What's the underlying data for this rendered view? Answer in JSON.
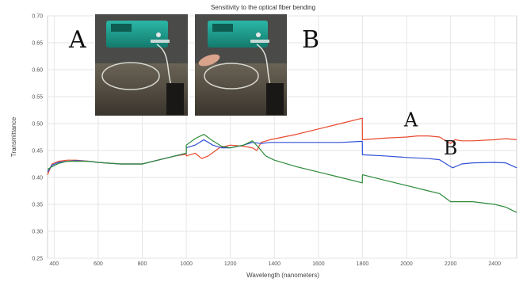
{
  "chart_data": {
    "type": "line",
    "title": "Sensitivity to the optical fiber bending",
    "xlabel": "Wavelength (nanometers)",
    "ylabel": "Transmittance",
    "xlim": [
      370,
      2500
    ],
    "ylim": [
      0.25,
      0.7
    ],
    "xticks": [
      400,
      600,
      800,
      1000,
      1200,
      1400,
      1600,
      1800,
      2000,
      2200,
      2400
    ],
    "yticks": [
      "0.25",
      "0.30",
      "0.35",
      "0.40",
      "0.45",
      "0.50",
      "0.55",
      "0.60",
      "0.65",
      "0.70"
    ],
    "grid": true,
    "photo_labels": [
      "A",
      "B"
    ],
    "curve_labels": [
      {
        "text": "A",
        "x": 2020,
        "y": 0.495
      },
      {
        "text": "B",
        "x": 2200,
        "y": 0.443
      }
    ],
    "series": [
      {
        "color": "#e8482c",
        "x": [
          370,
          390,
          420,
          460,
          500,
          560,
          600,
          700,
          800,
          850,
          900,
          950,
          1000,
          1000,
          1040,
          1070,
          1100,
          1150,
          1200,
          1260,
          1300,
          1320,
          1340,
          1380,
          1500,
          1600,
          1700,
          1799,
          1800,
          1900,
          2000,
          2050,
          2100,
          2150,
          2200,
          2220,
          2250,
          2300,
          2400,
          2450,
          2500
        ],
        "y": [
          0.405,
          0.425,
          0.43,
          0.432,
          0.432,
          0.43,
          0.428,
          0.425,
          0.425,
          0.43,
          0.435,
          0.44,
          0.443,
          0.44,
          0.445,
          0.435,
          0.44,
          0.455,
          0.46,
          0.458,
          0.455,
          0.45,
          0.465,
          0.47,
          0.48,
          0.49,
          0.5,
          0.51,
          0.47,
          0.473,
          0.475,
          0.477,
          0.477,
          0.475,
          0.463,
          0.47,
          0.468,
          0.468,
          0.47,
          0.472,
          0.47
        ]
      },
      {
        "color": "#2f4fd6",
        "x": [
          370,
          390,
          420,
          460,
          500,
          560,
          600,
          700,
          800,
          850,
          900,
          950,
          1000,
          1000,
          1040,
          1080,
          1120,
          1160,
          1200,
          1260,
          1300,
          1340,
          1380,
          1500,
          1600,
          1700,
          1799,
          1800,
          1900,
          2000,
          2100,
          2150,
          2200,
          2210,
          2250,
          2300,
          2400,
          2450,
          2500
        ],
        "y": [
          0.41,
          0.423,
          0.428,
          0.43,
          0.431,
          0.43,
          0.428,
          0.425,
          0.425,
          0.43,
          0.435,
          0.44,
          0.445,
          0.455,
          0.46,
          0.47,
          0.46,
          0.455,
          0.455,
          0.46,
          0.465,
          0.463,
          0.465,
          0.465,
          0.465,
          0.465,
          0.467,
          0.442,
          0.44,
          0.437,
          0.435,
          0.433,
          0.42,
          0.418,
          0.425,
          0.427,
          0.428,
          0.427,
          0.418
        ]
      },
      {
        "color": "#2e8b3a",
        "x": [
          370,
          390,
          420,
          460,
          500,
          560,
          600,
          700,
          800,
          850,
          900,
          950,
          1000,
          1000,
          1040,
          1080,
          1120,
          1160,
          1200,
          1260,
          1300,
          1330,
          1360,
          1400,
          1500,
          1600,
          1700,
          1799,
          1800,
          1900,
          2000,
          2100,
          2150,
          2200,
          2250,
          2300,
          2400,
          2450,
          2500
        ],
        "y": [
          0.415,
          0.42,
          0.426,
          0.43,
          0.43,
          0.43,
          0.428,
          0.425,
          0.425,
          0.43,
          0.435,
          0.44,
          0.445,
          0.46,
          0.472,
          0.48,
          0.468,
          0.458,
          0.455,
          0.46,
          0.468,
          0.455,
          0.44,
          0.432,
          0.42,
          0.41,
          0.4,
          0.39,
          0.405,
          0.395,
          0.385,
          0.375,
          0.37,
          0.355,
          0.355,
          0.355,
          0.35,
          0.345,
          0.335
        ]
      }
    ]
  }
}
